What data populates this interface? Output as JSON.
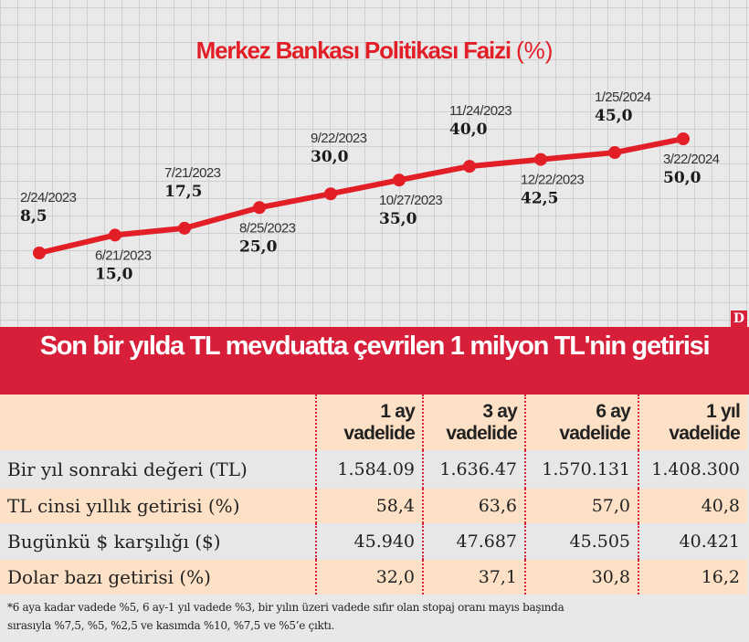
{
  "chart_data": {
    "type": "line",
    "title": "Merkez Bankası Politikası Faizi",
    "title_unit": "(%)",
    "x": [
      "2/24/2023",
      "6/21/2023",
      "7/21/2023",
      "8/25/2023",
      "9/22/2023",
      "10/27/2023",
      "11/24/2023",
      "12/22/2023",
      "1/25/2024",
      "3/22/2024"
    ],
    "values": [
      8.5,
      15.0,
      17.5,
      25.0,
      30.0,
      35.0,
      40.0,
      42.5,
      45.0,
      50.0
    ],
    "value_labels": [
      "8,5",
      "15,0",
      "17,5",
      "25,0",
      "30,0",
      "35,0",
      "40,0",
      "42,5",
      "45,0",
      "50,0"
    ],
    "label_position": [
      "above",
      "below",
      "above",
      "below",
      "above",
      "below",
      "above",
      "below",
      "above",
      "below"
    ],
    "grid": true,
    "line_color": "#e21f26"
  },
  "logo": "D",
  "table": {
    "title": "Son bir yılda TL mevduatta çevrilen 1 milyon TL'nin getirisi",
    "columns": [
      [
        "1 ay",
        "vadelide"
      ],
      [
        "3 ay",
        "vadelide"
      ],
      [
        "6 ay",
        "vadelide"
      ],
      [
        "1 yıl",
        "vadelide"
      ]
    ],
    "rows": [
      {
        "label": "Bir yıl sonraki değeri (TL)",
        "values": [
          "1.584.09",
          "1.636.47",
          "1.570.131",
          "1.408.300"
        ]
      },
      {
        "label": "TL cinsi yıllık getirisi (%)",
        "values": [
          "58,4",
          "63,6",
          "57,0",
          "40,8"
        ]
      },
      {
        "label": "Bugünkü $ karşılığı ($)",
        "values": [
          "45.940",
          "47.687",
          "45.505",
          "40.421"
        ]
      },
      {
        "label": "Dolar bazı getirisi (%)",
        "values": [
          "32,0",
          "37,1",
          "30,8",
          "16,2"
        ]
      }
    ],
    "footnote_lines": [
      "*6 aya kadar vadede %5, 6 ay-1 yıl vadede %3, bir yılın üzeri vadede sıfır olan stopaj oranı mayıs başında",
      "sırasıyla %7,5, %5, %2,5 ve kasımda %10, %7,5 ve %5’e çıktı."
    ]
  },
  "colors": {
    "accent": "#d71f3a",
    "peach": "#fde1c6",
    "gray": "#e6e7e9"
  }
}
